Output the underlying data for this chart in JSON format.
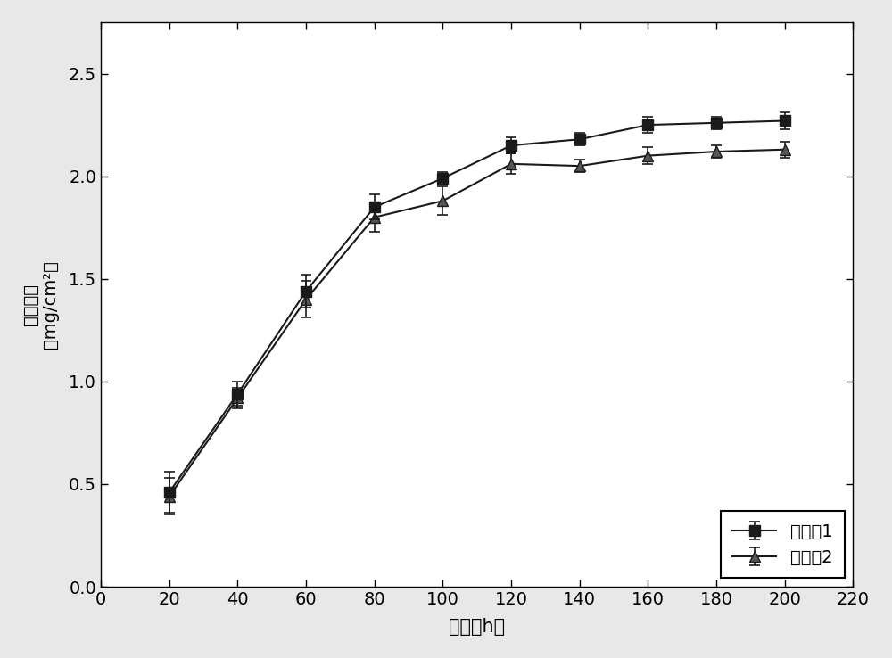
{
  "x": [
    20,
    40,
    60,
    80,
    100,
    120,
    140,
    160,
    180,
    200
  ],
  "series1_y": [
    0.46,
    0.94,
    1.44,
    1.85,
    1.99,
    2.15,
    2.18,
    2.25,
    2.26,
    2.27
  ],
  "series1_yerr": [
    0.1,
    0.06,
    0.08,
    0.06,
    0.03,
    0.04,
    0.03,
    0.04,
    0.03,
    0.04
  ],
  "series2_y": [
    0.44,
    0.92,
    1.4,
    1.8,
    1.88,
    2.06,
    2.05,
    2.1,
    2.12,
    2.13
  ],
  "series2_yerr": [
    0.09,
    0.05,
    0.09,
    0.07,
    0.07,
    0.05,
    0.03,
    0.04,
    0.03,
    0.04
  ],
  "series1_label": "实施例1",
  "series2_label": "实施例2",
  "xlabel": "时间（h）",
  "ylabel_line1": "氧化增重",
  "ylabel_line2": "（mg/cm²）",
  "xlim": [
    0,
    220
  ],
  "ylim": [
    0,
    2.75
  ],
  "xticks": [
    0,
    20,
    40,
    60,
    80,
    100,
    120,
    140,
    160,
    180,
    200,
    220
  ],
  "yticks": [
    0.0,
    0.5,
    1.0,
    1.5,
    2.0,
    2.5
  ],
  "line_color": "#1a1a1a",
  "marker1": "s",
  "marker2": "^",
  "markersize": 8,
  "linewidth": 1.5,
  "capsize": 4,
  "background_color": "#ffffff",
  "figure_bg": "#e8e8e8"
}
